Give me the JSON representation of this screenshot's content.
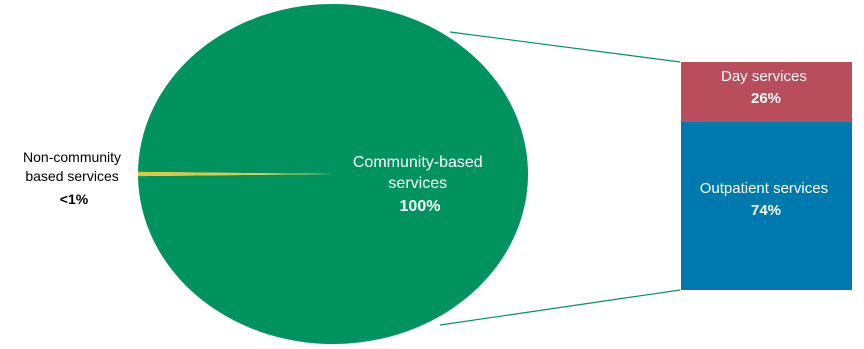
{
  "chart_data": [
    {
      "type": "pie",
      "slices": [
        {
          "label_lines": [
            "Community-based",
            "services"
          ],
          "value_label": "100%",
          "value": 99.6,
          "color": "#00935f"
        },
        {
          "label_lines": [
            "Non-community",
            "based services"
          ],
          "value_label": "<1%",
          "value": 0.4,
          "color": "#e8c53a"
        }
      ]
    },
    {
      "type": "bar",
      "stacked": true,
      "segments": [
        {
          "label": "Day services",
          "value_label": "26%",
          "value": 26,
          "color": "#b84d5c"
        },
        {
          "label": "Outpatient services",
          "value_label": "74%",
          "value": 74,
          "color": "#0079ae"
        }
      ]
    }
  ],
  "colors": {
    "connector_line": "#00935f",
    "text_dark": "#000000",
    "text_light": "#ffffff"
  }
}
